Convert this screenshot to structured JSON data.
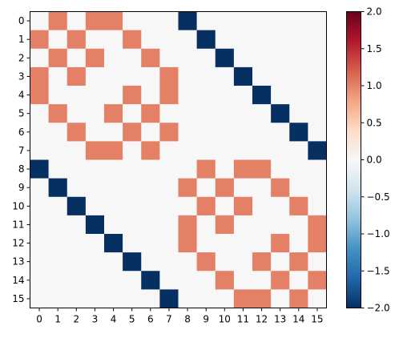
{
  "chart_data": {
    "type": "heatmap",
    "title": "",
    "xlabel": "",
    "ylabel": "",
    "x_categories": [
      "0",
      "1",
      "2",
      "3",
      "4",
      "5",
      "6",
      "7",
      "8",
      "9",
      "10",
      "11",
      "12",
      "13",
      "14",
      "15"
    ],
    "y_categories": [
      "0",
      "1",
      "2",
      "3",
      "4",
      "5",
      "6",
      "7",
      "8",
      "9",
      "10",
      "11",
      "12",
      "13",
      "14",
      "15"
    ],
    "matrix": [
      [
        0,
        1,
        0,
        1,
        1,
        0,
        0,
        0,
        -2,
        0,
        0,
        0,
        0,
        0,
        0,
        0
      ],
      [
        1,
        0,
        1,
        0,
        0,
        1,
        0,
        0,
        0,
        -2,
        0,
        0,
        0,
        0,
        0,
        0
      ],
      [
        0,
        1,
        0,
        1,
        0,
        0,
        1,
        0,
        0,
        0,
        -2,
        0,
        0,
        0,
        0,
        0
      ],
      [
        1,
        0,
        1,
        0,
        0,
        0,
        0,
        1,
        0,
        0,
        0,
        -2,
        0,
        0,
        0,
        0
      ],
      [
        1,
        0,
        0,
        0,
        0,
        1,
        0,
        1,
        0,
        0,
        0,
        0,
        -2,
        0,
        0,
        0
      ],
      [
        0,
        1,
        0,
        0,
        1,
        0,
        1,
        0,
        0,
        0,
        0,
        0,
        0,
        -2,
        0,
        0
      ],
      [
        0,
        0,
        1,
        0,
        0,
        1,
        0,
        1,
        0,
        0,
        0,
        0,
        0,
        0,
        -2,
        0
      ],
      [
        0,
        0,
        0,
        1,
        1,
        0,
        1,
        0,
        0,
        0,
        0,
        0,
        0,
        0,
        0,
        -2
      ],
      [
        -2,
        0,
        0,
        0,
        0,
        0,
        0,
        0,
        0,
        1,
        0,
        1,
        1,
        0,
        0,
        0
      ],
      [
        0,
        -2,
        0,
        0,
        0,
        0,
        0,
        0,
        1,
        0,
        1,
        0,
        0,
        1,
        0,
        0
      ],
      [
        0,
        0,
        -2,
        0,
        0,
        0,
        0,
        0,
        0,
        1,
        0,
        1,
        0,
        0,
        1,
        0
      ],
      [
        0,
        0,
        0,
        -2,
        0,
        0,
        0,
        0,
        1,
        0,
        1,
        0,
        0,
        0,
        0,
        1
      ],
      [
        0,
        0,
        0,
        0,
        -2,
        0,
        0,
        0,
        1,
        0,
        0,
        0,
        0,
        1,
        0,
        1
      ],
      [
        0,
        0,
        0,
        0,
        0,
        -2,
        0,
        0,
        0,
        1,
        0,
        0,
        1,
        0,
        1,
        0
      ],
      [
        0,
        0,
        0,
        0,
        0,
        0,
        -2,
        0,
        0,
        0,
        1,
        0,
        0,
        1,
        0,
        1
      ],
      [
        0,
        0,
        0,
        0,
        0,
        0,
        0,
        -2,
        0,
        0,
        0,
        1,
        1,
        0,
        1,
        0
      ]
    ],
    "colormap": "RdBu_r",
    "value_range": [
      -2,
      2
    ],
    "colorbar": {
      "ticks": [
        2.0,
        1.5,
        1.0,
        0.5,
        0.0,
        -0.5,
        -1.0,
        -1.5,
        -2.0
      ],
      "tick_labels": [
        "2.0",
        "1.5",
        "1.0",
        "0.5",
        "0.0",
        "−0.5",
        "−1.0",
        "−1.5",
        "−2.0"
      ]
    },
    "value_colors": {
      "-2": "#053061",
      "0": "#f7f7f7",
      "1": "#e48066"
    },
    "grid": false
  }
}
